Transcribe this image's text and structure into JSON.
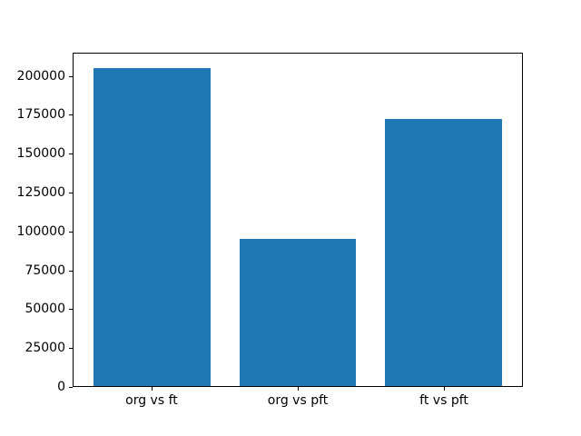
{
  "chart_data": {
    "type": "bar",
    "title": "",
    "xlabel": "",
    "ylabel": "",
    "categories": [
      "org vs ft",
      "org vs pft",
      "ft vs pft"
    ],
    "values": [
      205500,
      95000,
      173000
    ],
    "yticks": [
      0,
      25000,
      50000,
      75000,
      100000,
      125000,
      150000,
      175000,
      200000
    ],
    "ylim": [
      0,
      215000
    ],
    "xlim": [
      -0.54,
      2.54
    ],
    "bar_width": 0.8,
    "bar_color": "#1f77b4",
    "axis_color": "#000000",
    "background_color": "#ffffff",
    "grid": false,
    "legend": null
  }
}
